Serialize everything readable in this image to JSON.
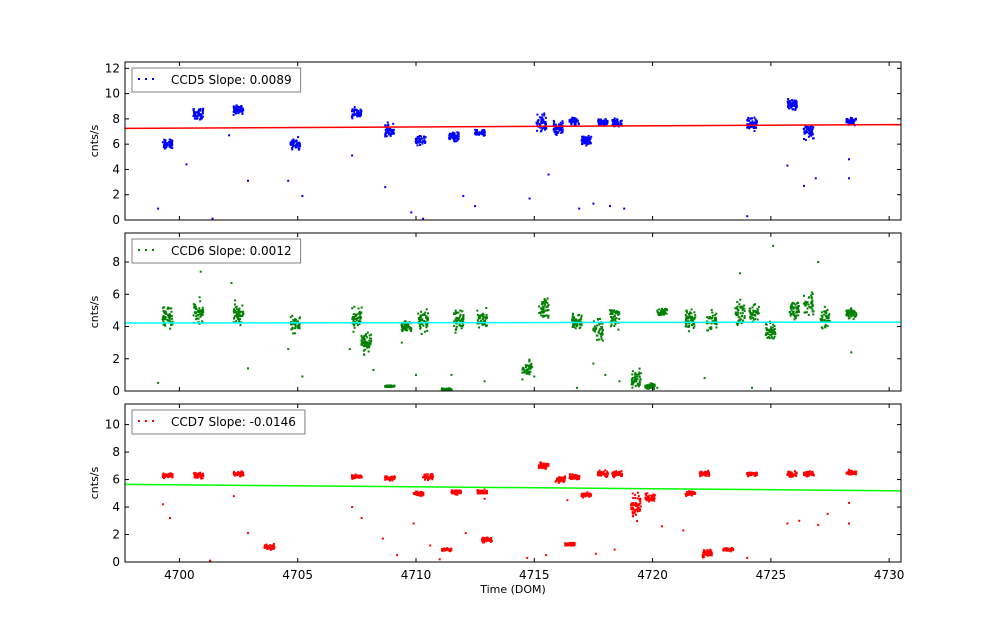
{
  "chart_data": {
    "type": "scatter",
    "xlabel": "Time (DOM)",
    "xlim": [
      4697.7,
      4730.5
    ],
    "xticks": [
      4700,
      4705,
      4710,
      4715,
      4720,
      4725,
      4730
    ],
    "grid": false,
    "legend_placement": "top-left",
    "panels": [
      {
        "ylabel": "cnts/s",
        "ylim": [
          0,
          12.5
        ],
        "yticks": [
          0,
          2,
          4,
          6,
          8,
          10,
          12
        ],
        "legend": "CCD5 Slope: 0.0089",
        "point_color": "#0000ff",
        "fit_color": "#ff0000",
        "fit_line": [
          [
            4697.7,
            7.25
          ],
          [
            4730.5,
            7.55
          ]
        ],
        "clusters": [
          [
            4699.5,
            6.0,
            0.35
          ],
          [
            4700.8,
            8.4,
            0.4
          ],
          [
            4702.5,
            8.7,
            0.35
          ],
          [
            4704.9,
            6.0,
            0.45
          ],
          [
            4707.5,
            8.5,
            0.4
          ],
          [
            4708.9,
            7.0,
            0.5
          ],
          [
            4710.2,
            6.3,
            0.35
          ],
          [
            4711.6,
            6.6,
            0.4
          ],
          [
            4712.7,
            6.9,
            0.2
          ],
          [
            4715.3,
            7.6,
            0.7
          ],
          [
            4716.0,
            7.2,
            0.5
          ],
          [
            4716.7,
            7.8,
            0.3
          ],
          [
            4717.2,
            6.3,
            0.35
          ],
          [
            4717.9,
            7.7,
            0.25
          ],
          [
            4718.5,
            7.7,
            0.3
          ],
          [
            4724.2,
            7.6,
            0.45
          ],
          [
            4725.9,
            9.2,
            0.45
          ],
          [
            4726.6,
            7.0,
            0.6
          ],
          [
            4728.4,
            7.8,
            0.3
          ]
        ],
        "outliers": [
          [
            4699.1,
            0.9
          ],
          [
            4700.3,
            4.4
          ],
          [
            4701.4,
            0.1
          ],
          [
            4702.1,
            6.7
          ],
          [
            4702.9,
            3.1
          ],
          [
            4704.6,
            3.1
          ],
          [
            4705.2,
            1.9
          ],
          [
            4707.3,
            5.1
          ],
          [
            4708.7,
            2.6
          ],
          [
            4709.8,
            0.6
          ],
          [
            4710.3,
            0.1
          ],
          [
            4712.0,
            1.9
          ],
          [
            4712.5,
            1.1
          ],
          [
            4714.8,
            1.7
          ],
          [
            4715.6,
            3.6
          ],
          [
            4716.9,
            0.9
          ],
          [
            4717.5,
            1.3
          ],
          [
            4718.2,
            1.1
          ],
          [
            4718.8,
            0.9
          ],
          [
            4724.0,
            0.3
          ],
          [
            4725.7,
            4.3
          ],
          [
            4726.4,
            2.7
          ],
          [
            4726.9,
            3.3
          ],
          [
            4728.3,
            3.3
          ],
          [
            4728.3,
            4.8
          ]
        ]
      },
      {
        "ylabel": "cnts/s",
        "ylim": [
          0,
          9.8
        ],
        "yticks": [
          0,
          2,
          4,
          6,
          8
        ],
        "legend": "CCD6 Slope: 0.0012",
        "point_color": "#008000",
        "fit_color": "#00ffff",
        "fit_line": [
          [
            4697.7,
            4.22
          ],
          [
            4730.5,
            4.27
          ]
        ],
        "clusters": [
          [
            4699.5,
            4.6,
            0.7
          ],
          [
            4700.8,
            4.9,
            0.7
          ],
          [
            4702.5,
            4.8,
            0.6
          ],
          [
            4704.9,
            4.1,
            0.5
          ],
          [
            4707.5,
            4.5,
            0.6
          ],
          [
            4707.9,
            3.0,
            0.6
          ],
          [
            4708.9,
            0.3,
            0.05
          ],
          [
            4709.6,
            4.0,
            0.4
          ],
          [
            4710.3,
            4.4,
            0.6
          ],
          [
            4711.3,
            0.1,
            0.05
          ],
          [
            4711.8,
            4.4,
            0.6
          ],
          [
            4712.8,
            4.4,
            0.5
          ],
          [
            4714.7,
            1.4,
            0.5
          ],
          [
            4715.4,
            5.2,
            0.6
          ],
          [
            4716.8,
            4.3,
            0.5
          ],
          [
            4717.7,
            3.8,
            0.8
          ],
          [
            4718.4,
            4.6,
            0.6
          ],
          [
            4719.3,
            0.7,
            0.5
          ],
          [
            4719.9,
            0.3,
            0.2
          ],
          [
            4720.4,
            4.9,
            0.3
          ],
          [
            4721.6,
            4.5,
            0.6
          ],
          [
            4722.5,
            4.3,
            0.6
          ],
          [
            4723.7,
            4.8,
            0.7
          ],
          [
            4724.3,
            4.8,
            0.5
          ],
          [
            4725.0,
            3.7,
            0.6
          ],
          [
            4726.0,
            5.1,
            0.6
          ],
          [
            4726.6,
            5.4,
            0.7
          ],
          [
            4727.3,
            4.5,
            0.6
          ],
          [
            4728.4,
            4.8,
            0.3
          ]
        ],
        "outliers": [
          [
            4699.1,
            0.5
          ],
          [
            4700.9,
            7.4
          ],
          [
            4702.2,
            6.7
          ],
          [
            4702.9,
            1.4
          ],
          [
            4704.6,
            2.6
          ],
          [
            4705.2,
            0.9
          ],
          [
            4707.2,
            2.6
          ],
          [
            4708.2,
            1.3
          ],
          [
            4709.4,
            3.0
          ],
          [
            4710.0,
            1.0
          ],
          [
            4711.5,
            1.0
          ],
          [
            4712.9,
            0.6
          ],
          [
            4715.0,
            0.9
          ],
          [
            4716.8,
            0.2
          ],
          [
            4717.5,
            1.7
          ],
          [
            4718.0,
            1.0
          ],
          [
            4718.6,
            0.6
          ],
          [
            4720.2,
            0.2
          ],
          [
            4722.2,
            0.8
          ],
          [
            4723.7,
            7.3
          ],
          [
            4724.2,
            0.2
          ],
          [
            4725.1,
            9.0
          ],
          [
            4727.0,
            8.0
          ],
          [
            4728.4,
            2.4
          ]
        ]
      },
      {
        "ylabel": "cnts/s",
        "ylim": [
          0,
          11.5
        ],
        "yticks": [
          0,
          2,
          4,
          6,
          8,
          10
        ],
        "legend": "CCD7 Slope: -0.0146",
        "point_color": "#ff0000",
        "fit_color": "#00ff00",
        "fit_line": [
          [
            4697.7,
            5.65
          ],
          [
            4730.5,
            5.18
          ]
        ],
        "clusters": [
          [
            4699.5,
            6.3,
            0.15
          ],
          [
            4700.8,
            6.3,
            0.2
          ],
          [
            4702.5,
            6.4,
            0.15
          ],
          [
            4703.8,
            1.1,
            0.15
          ],
          [
            4707.5,
            6.2,
            0.15
          ],
          [
            4708.9,
            6.1,
            0.15
          ],
          [
            4710.1,
            5.0,
            0.15
          ],
          [
            4710.5,
            6.2,
            0.2
          ],
          [
            4711.3,
            0.9,
            0.1
          ],
          [
            4711.7,
            5.1,
            0.15
          ],
          [
            4712.8,
            5.1,
            0.15
          ],
          [
            4713.0,
            1.6,
            0.2
          ],
          [
            4715.4,
            7.0,
            0.2
          ],
          [
            4716.1,
            6.0,
            0.25
          ],
          [
            4716.5,
            1.3,
            0.1
          ],
          [
            4716.7,
            6.2,
            0.2
          ],
          [
            4717.2,
            4.9,
            0.15
          ],
          [
            4717.9,
            6.4,
            0.2
          ],
          [
            4718.5,
            6.4,
            0.2
          ],
          [
            4719.3,
            4.2,
            0.8
          ],
          [
            4719.9,
            4.7,
            0.3
          ],
          [
            4721.6,
            5.0,
            0.15
          ],
          [
            4722.2,
            6.4,
            0.2
          ],
          [
            4722.3,
            0.6,
            0.3
          ],
          [
            4723.2,
            0.9,
            0.1
          ],
          [
            4724.2,
            6.4,
            0.2
          ],
          [
            4725.9,
            6.4,
            0.2
          ],
          [
            4726.6,
            6.4,
            0.2
          ],
          [
            4728.4,
            6.5,
            0.15
          ]
        ],
        "outliers": [
          [
            4699.3,
            4.2
          ],
          [
            4699.6,
            3.2
          ],
          [
            4701.3,
            0.1
          ],
          [
            4702.3,
            4.8
          ],
          [
            4702.9,
            2.1
          ],
          [
            4707.3,
            4.0
          ],
          [
            4707.7,
            3.2
          ],
          [
            4708.6,
            1.7
          ],
          [
            4709.2,
            0.5
          ],
          [
            4709.9,
            2.8
          ],
          [
            4710.6,
            1.2
          ],
          [
            4711.0,
            0.2
          ],
          [
            4712.1,
            2.1
          ],
          [
            4712.9,
            4.6
          ],
          [
            4714.7,
            0.3
          ],
          [
            4715.5,
            0.5
          ],
          [
            4716.4,
            4.5
          ],
          [
            4717.6,
            0.6
          ],
          [
            4718.4,
            0.9
          ],
          [
            4720.4,
            2.6
          ],
          [
            4721.3,
            2.3
          ],
          [
            4724.0,
            0.3
          ],
          [
            4725.7,
            2.8
          ],
          [
            4726.2,
            3.0
          ],
          [
            4727.0,
            2.7
          ],
          [
            4727.4,
            3.5
          ],
          [
            4728.3,
            4.3
          ],
          [
            4728.3,
            2.8
          ]
        ]
      }
    ]
  }
}
